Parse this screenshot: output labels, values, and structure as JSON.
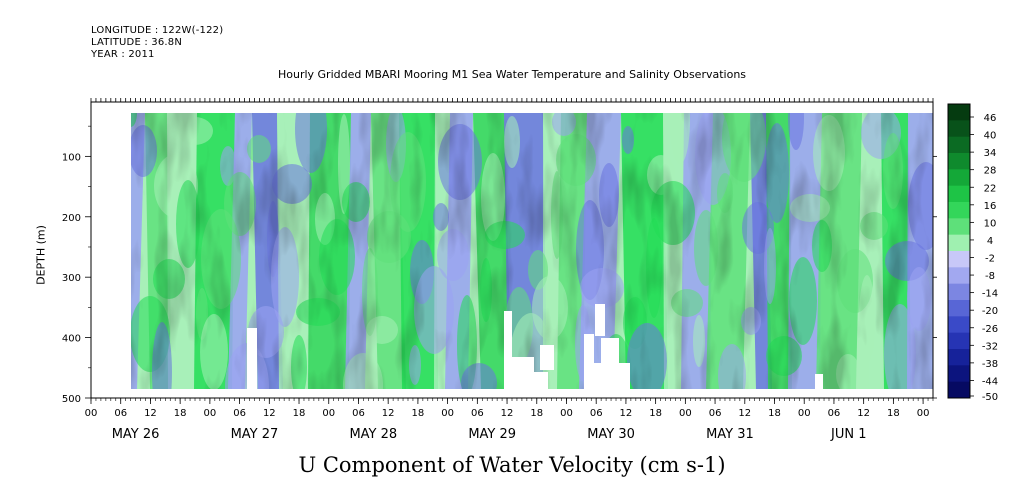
{
  "header": {
    "longitude": "LONGITUDE : 122W(-122)",
    "latitude": "LATITUDE : 36.8N",
    "year": "YEAR : 2011"
  },
  "chart_data": {
    "type": "heatmap",
    "title": "Hourly Gridded MBARI Mooring M1 Sea Water Temperature and Salinity Observations",
    "xlabel": "U Component of Water Velocity (cm s-1)",
    "ylabel": "DEPTH (m)",
    "y_ticks": [
      100,
      200,
      300,
      400,
      500
    ],
    "ylim": [
      500,
      10
    ],
    "x_hour_labels": [
      "00",
      "06",
      "12",
      "18",
      "00",
      "06",
      "12",
      "18",
      "00",
      "06",
      "12",
      "18",
      "00",
      "06",
      "12",
      "18",
      "00",
      "06",
      "12",
      "18",
      "00",
      "06",
      "12",
      "18",
      "00",
      "06",
      "12",
      "18",
      "00"
    ],
    "x_day_labels": [
      "MAY 26",
      "MAY 27",
      "MAY 28",
      "MAY 29",
      "MAY 30",
      "MAY 31",
      "JUN 1"
    ],
    "colorbar": {
      "labels": [
        "46",
        "40",
        "34",
        "28",
        "22",
        "16",
        "10",
        "4",
        "-2",
        "-8",
        "-14",
        "-20",
        "-26",
        "-32",
        "-38",
        "-44",
        "-50"
      ],
      "range": [
        -50,
        52
      ],
      "colors_hex": [
        "#053b10",
        "#08521a",
        "#0b6b23",
        "#0f8a2d",
        "#14a838",
        "#1ec446",
        "#33d65a",
        "#5ee07a",
        "#9ff0b0",
        "#c8c8f8",
        "#a2a8f0",
        "#7c86e2",
        "#5866d6",
        "#3a4ac8",
        "#2634b4",
        "#16229a",
        "#0c147e",
        "#060a62"
      ]
    },
    "series_note_values": {
      "positive_color": "#22dd55",
      "light_positive_color": "#a8f0b8",
      "negative_color": "#9aa2f2",
      "strong_negative_color": "#6a74e0"
    }
  }
}
